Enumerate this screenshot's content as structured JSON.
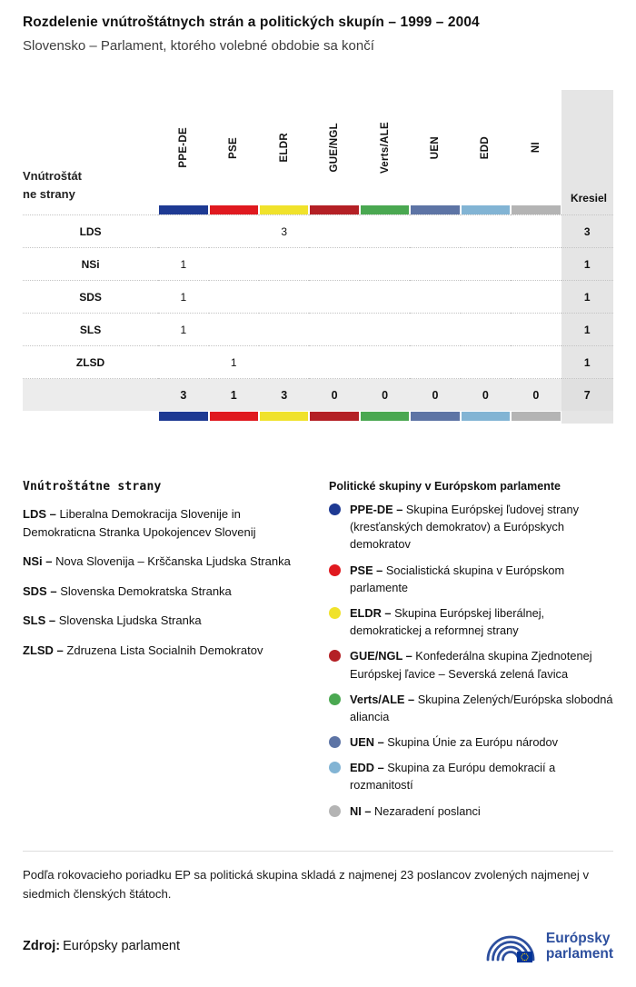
{
  "header": {
    "title": "Rozdelenie vnútroštátnych strán a politických skupín – 1999 – 2004",
    "subtitle": "Slovensko – Parlament, ktorého volebné obdobie sa končí"
  },
  "chart_data": {
    "type": "table",
    "row_header": "Vnútroštátne strany",
    "seats_label": "Kresiel",
    "groups": [
      {
        "label": "PPE-DE",
        "color": "#1e3a93"
      },
      {
        "label": "PSE",
        "color": "#e0191f"
      },
      {
        "label": "ELDR",
        "color": "#f0e22b"
      },
      {
        "label": "GUE/NGL",
        "color": "#b42025"
      },
      {
        "label": "Verts/ALE",
        "color": "#4aa851"
      },
      {
        "label": "UEN",
        "color": "#5d74a5"
      },
      {
        "label": "EDD",
        "color": "#82b4d4"
      },
      {
        "label": "NI",
        "color": "#b4b4b4"
      }
    ],
    "rows": [
      {
        "party": "LDS",
        "values": [
          null,
          null,
          3,
          null,
          null,
          null,
          null,
          null
        ],
        "seats": 3
      },
      {
        "party": "NSi",
        "values": [
          1,
          null,
          null,
          null,
          null,
          null,
          null,
          null
        ],
        "seats": 1
      },
      {
        "party": "SDS",
        "values": [
          1,
          null,
          null,
          null,
          null,
          null,
          null,
          null
        ],
        "seats": 1
      },
      {
        "party": "SLS",
        "values": [
          1,
          null,
          null,
          null,
          null,
          null,
          null,
          null
        ],
        "seats": 1
      },
      {
        "party": "ZLSD",
        "values": [
          null,
          1,
          null,
          null,
          null,
          null,
          null,
          null
        ],
        "seats": 1
      }
    ],
    "totals": {
      "values": [
        3,
        1,
        3,
        0,
        0,
        0,
        0,
        0
      ],
      "seats": 7
    }
  },
  "legend_parties": {
    "heading": "Vnútroštátne strany",
    "items": [
      {
        "abbr": "LDS –",
        "text": "Liberalna Demokracija Slovenije in Demokraticna Stranka Upokojencev Slovenij"
      },
      {
        "abbr": "NSi –",
        "text": "Nova Slovenija – Krščanska Ljudska Stranka"
      },
      {
        "abbr": "SDS –",
        "text": "Slovenska Demokratska Stranka"
      },
      {
        "abbr": "SLS –",
        "text": "Slovenska Ljudska Stranka"
      },
      {
        "abbr": "ZLSD –",
        "text": "Zdruzena Lista Socialnih Demokratov"
      }
    ]
  },
  "legend_groups": {
    "heading": "Politické skupiny v Európskom parlamente",
    "items": [
      {
        "abbr": "PPE-DE –",
        "text": "Skupina Európskej ľudovej strany (kresťanských demokratov) a Európskych demokratov"
      },
      {
        "abbr": "PSE –",
        "text": "Socialistická skupina v Európskom parlamente"
      },
      {
        "abbr": "ELDR –",
        "text": "Skupina Európskej liberálnej, demokratickej a reformnej strany"
      },
      {
        "abbr": "GUE/NGL –",
        "text": "Konfederálna skupina Zjednotenej Európskej ľavice – Severská zelená ľavica"
      },
      {
        "abbr": "Verts/ALE –",
        "text": "Skupina Zelených/Európska slobodná aliancia"
      },
      {
        "abbr": "UEN –",
        "text": "Skupina Únie za Európu národov"
      },
      {
        "abbr": "EDD –",
        "text": "Skupina za Európu demokracií a rozmanitostí"
      },
      {
        "abbr": "NI –",
        "text": "Nezaradení poslanci"
      }
    ]
  },
  "footer": {
    "note": "Podľa rokovacieho poriadku EP sa politická skupina skladá z najmenej 23 poslancov zvolených najmenej v siedmich členských štátoch.",
    "source_label": "Zdroj:",
    "source": "Európsky parlament",
    "logo_line1": "Európsky",
    "logo_line2": "parlament"
  }
}
